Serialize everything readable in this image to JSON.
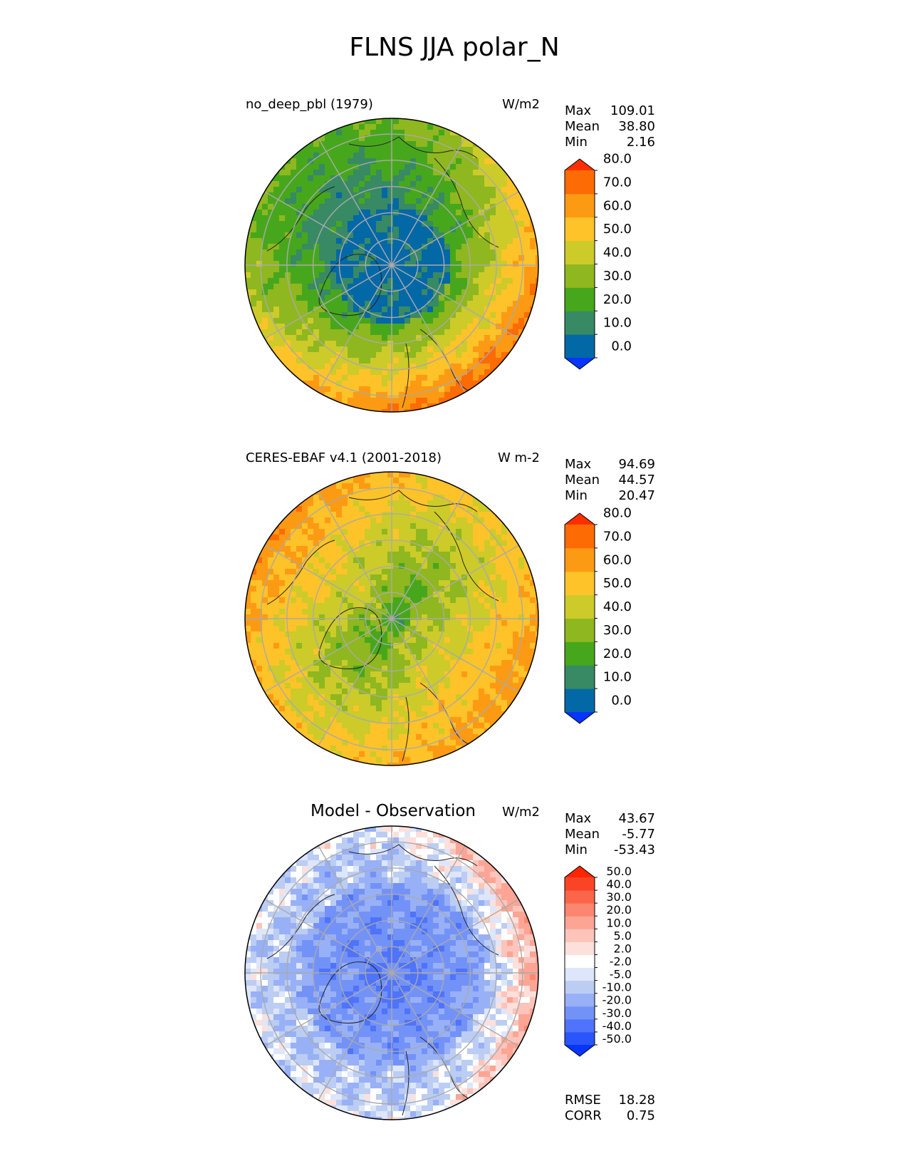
{
  "figure": {
    "title": "FLNS JJA polar_N"
  },
  "chart_data": [
    {
      "type": "heatmap",
      "projection": "north-polar-stereographic",
      "title": "no_deep_pbl (1979)",
      "units": "W/m2",
      "stats": [
        {
          "label": "Max",
          "value": "109.01"
        },
        {
          "label": "Mean",
          "value": "38.80"
        },
        {
          "label": "Min",
          "value": "2.16"
        }
      ],
      "levels": [
        "0.0",
        "10.0",
        "20.0",
        "30.0",
        "40.0",
        "50.0",
        "60.0",
        "70.0",
        "80.0"
      ],
      "colors": [
        "#0535ff",
        "#0368a6",
        "#378a63",
        "#47a71c",
        "#8fb71f",
        "#cccb2a",
        "#fdc328",
        "#fd9a14",
        "#fd6b05",
        "#fd2f00"
      ],
      "field": "model",
      "grid": true,
      "coastlines": true
    },
    {
      "type": "heatmap",
      "projection": "north-polar-stereographic",
      "title": "CERES-EBAF v4.1 (2001-2018)",
      "units": "W m-2",
      "stats": [
        {
          "label": "Max",
          "value": "94.69"
        },
        {
          "label": "Mean",
          "value": "44.57"
        },
        {
          "label": "Min",
          "value": "20.47"
        }
      ],
      "levels": [
        "0.0",
        "10.0",
        "20.0",
        "30.0",
        "40.0",
        "50.0",
        "60.0",
        "70.0",
        "80.0"
      ],
      "colors": [
        "#0535ff",
        "#0368a6",
        "#378a63",
        "#47a71c",
        "#8fb71f",
        "#cccb2a",
        "#fdc328",
        "#fd9a14",
        "#fd6b05",
        "#fd2f00"
      ],
      "field": "obs",
      "grid": true,
      "coastlines": true
    },
    {
      "type": "heatmap",
      "projection": "north-polar-stereographic",
      "title": "Model - Observation",
      "units": "W/m2",
      "stats": [
        {
          "label": "Max",
          "value": "43.67"
        },
        {
          "label": "Mean",
          "value": "-5.77"
        },
        {
          "label": "Min",
          "value": "-53.43"
        }
      ],
      "levels": [
        "-50.0",
        "-40.0",
        "-30.0",
        "-20.0",
        "-10.0",
        "-5.0",
        "-2.0",
        "2.0",
        "5.0",
        "10.0",
        "20.0",
        "30.0",
        "40.0",
        "50.0"
      ],
      "colors": [
        "#0535ff",
        "#2a55fc",
        "#4f73fa",
        "#7392f8",
        "#98b0f6",
        "#bccdf3",
        "#dde6fa",
        "#ffffff",
        "#fde0db",
        "#fcc4ba",
        "#fca595",
        "#fb8770",
        "#fb664b",
        "#fb4426",
        "#fd2600"
      ],
      "field": "diff",
      "grid": true,
      "coastlines": true,
      "metrics": [
        {
          "label": "RMSE",
          "value": "18.28"
        },
        {
          "label": "CORR",
          "value": "0.75"
        }
      ]
    }
  ]
}
